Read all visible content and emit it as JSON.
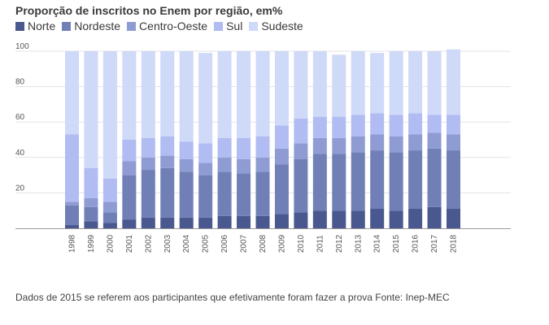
{
  "chart_data": {
    "type": "bar",
    "stacked": true,
    "title": "Proporção de inscritos no Enem por região, em%",
    "categories": [
      "1998",
      "1999",
      "2000",
      "2001",
      "2002",
      "2003",
      "2004",
      "2005",
      "2006",
      "2007",
      "2008",
      "2009",
      "2010",
      "2011",
      "2012",
      "2013",
      "2014",
      "2015",
      "2016",
      "2017",
      "2018"
    ],
    "series": [
      {
        "name": "Norte",
        "color": "#49588f",
        "values": [
          2,
          4,
          3,
          5,
          6,
          6,
          6,
          6,
          7,
          7,
          7,
          8,
          9,
          10,
          10,
          10,
          11,
          10,
          11,
          12,
          11
        ]
      },
      {
        "name": "Nordeste",
        "color": "#7080b7",
        "values": [
          11,
          8,
          6,
          25,
          27,
          28,
          26,
          24,
          25,
          24,
          25,
          28,
          30,
          32,
          32,
          33,
          33,
          33,
          33,
          33,
          33
        ]
      },
      {
        "name": "Centro-Oeste",
        "color": "#8f9cd3",
        "values": [
          2,
          5,
          6,
          8,
          7,
          7,
          7,
          7,
          8,
          8,
          8,
          9,
          9,
          9,
          9,
          9,
          9,
          9,
          9,
          9,
          9
        ]
      },
      {
        "name": "Sul",
        "color": "#b0bcf2",
        "values": [
          38,
          17,
          13,
          12,
          11,
          11,
          10,
          11,
          11,
          12,
          12,
          13,
          14,
          12,
          12,
          12,
          12,
          12,
          12,
          10,
          11
        ]
      },
      {
        "name": "Sudeste",
        "color": "#cfd9f8",
        "values": [
          47,
          66,
          72,
          50,
          49,
          48,
          51,
          51,
          49,
          49,
          48,
          42,
          38,
          37,
          35,
          36,
          34,
          36,
          35,
          36,
          37
        ]
      }
    ],
    "ylim": [
      0,
      100
    ],
    "yticks": [
      20,
      40,
      60,
      80,
      100
    ],
    "grid": true,
    "legend_position": "top-left"
  },
  "footnote": "Dados de 2015 se referem aos participantes que efetivamente foram fazer a prova Fonte: Inep-MEC"
}
